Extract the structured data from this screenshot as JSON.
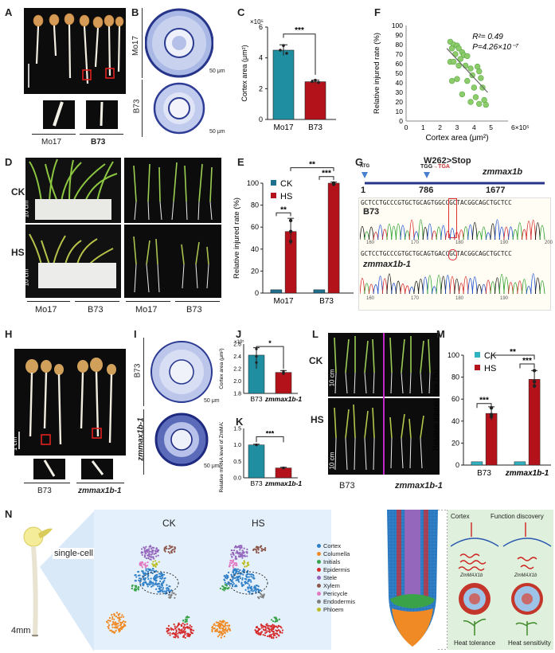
{
  "panels": {
    "A": "A",
    "B": "B",
    "C": "C",
    "D": "D",
    "E": "E",
    "F": "F",
    "G": "G",
    "H": "H",
    "I": "I",
    "J": "J",
    "K": "K",
    "L": "L",
    "M": "M",
    "N": "N"
  },
  "common": {
    "mo17": "Mo17",
    "b73": "B73",
    "zm": "zmmax1b-1",
    "ck": "CK",
    "hs": "HS",
    "scale_1cm": "1 cm",
    "scale_10cm": "10 cm",
    "scale_50um": "50 μm",
    "stars3": "***",
    "stars2": "**",
    "stars1": "*"
  },
  "panelC": {
    "chart_data": {
      "type": "bar",
      "categories": [
        "Mo17",
        "B73"
      ],
      "values": [
        4.5,
        2.45
      ],
      "errors": [
        0.35,
        0.1
      ],
      "colors": [
        "#1f8ea0",
        "#b3121b"
      ],
      "ylabel": "Cortex area (μm²)",
      "ylim": [
        0,
        6
      ],
      "yticks": [
        "0",
        "2",
        "4",
        "6"
      ],
      "exponent": "×10⁵",
      "significance": "***"
    }
  },
  "panelE": {
    "chart_data": {
      "type": "bar",
      "categories": [
        "Mo17",
        "B73"
      ],
      "series": [
        {
          "name": "CK",
          "values": [
            3,
            3
          ]
        },
        {
          "name": "HS",
          "values": [
            56,
            100
          ]
        }
      ],
      "ylabel": "Relative injured rate (%)",
      "ylim": [
        0,
        100
      ],
      "yticks": [
        "0",
        "20",
        "40",
        "60",
        "80",
        "100"
      ],
      "significance": [
        "**",
        "***",
        "**"
      ]
    }
  },
  "panelF": {
    "chart_data": {
      "type": "scatter",
      "xlabel": "Cortex area (μm²)",
      "ylabel": "Relative injured rate (%)",
      "xlim": [
        0,
        6
      ],
      "ylim": [
        0,
        100
      ],
      "xticks": [
        "0",
        "1",
        "2",
        "3",
        "4",
        "5"
      ],
      "exponent": "6×10⁵",
      "yticks": [
        "0",
        "10",
        "20",
        "30",
        "40",
        "50",
        "60",
        "70",
        "80",
        "90",
        "100"
      ],
      "r2": "R²= 0.49",
      "p": "P=4.26×10⁻⁷",
      "points": [
        [
          2.6,
          83
        ],
        [
          2.8,
          80
        ],
        [
          3.0,
          79
        ],
        [
          2.7,
          76
        ],
        [
          3.1,
          76
        ],
        [
          3.3,
          72
        ],
        [
          2.9,
          70
        ],
        [
          3.4,
          69
        ],
        [
          3.6,
          68
        ],
        [
          3.2,
          65
        ],
        [
          2.6,
          62
        ],
        [
          2.8,
          62
        ],
        [
          3.1,
          58
        ],
        [
          3.5,
          58
        ],
        [
          3.8,
          55
        ],
        [
          4.2,
          57
        ],
        [
          4.3,
          52
        ],
        [
          3.9,
          48
        ],
        [
          4.4,
          45
        ],
        [
          3.0,
          44
        ],
        [
          2.7,
          42
        ],
        [
          3.6,
          42
        ],
        [
          4.0,
          35
        ],
        [
          4.5,
          35
        ],
        [
          3.3,
          28
        ],
        [
          4.1,
          25
        ],
        [
          4.6,
          22
        ],
        [
          3.8,
          20
        ],
        [
          4.3,
          18
        ],
        [
          4.7,
          17
        ]
      ],
      "trend": [
        [
          2.4,
          76
        ],
        [
          4.8,
          30
        ]
      ]
    }
  },
  "panelG": {
    "title": "W262>Stop",
    "gene": "zmmax1b",
    "atg": "ATG",
    "tgg": "TGG",
    "arrow": "→",
    "tga": "TGA",
    "pos1": "1",
    "pos2": "786",
    "pos3": "1677",
    "seq1": "GCTCCTGCCCGTGCTGCAGTGGCCGCTACGGCAGCTGCTCC",
    "seq2": "GCTCCTGCCCGTGCTGCAGTGACCGCTACGGCAGCTGCTCC",
    "lab1": "B73",
    "lab2": "zmmax1b-1",
    "ticks1": [
      "160",
      "170",
      "180",
      "190",
      "200"
    ],
    "ticks2": [
      "160",
      "170",
      "180",
      "190"
    ]
  },
  "panelJ": {
    "chart_data": {
      "type": "bar",
      "categories": [
        "B73",
        "zmmax1b-1"
      ],
      "values": [
        2.42,
        2.14
      ],
      "errors": [
        0.12,
        0.03
      ],
      "ylabel": "Cortex area (μm²)",
      "ylim": [
        1.8,
        2.6
      ],
      "yticks": [
        "1.8",
        "2.0",
        "2.2",
        "2.4",
        "2.6"
      ],
      "exponent": "×10⁵",
      "significance": "*"
    }
  },
  "panelK": {
    "chart_data": {
      "type": "bar",
      "categories": [
        "B73",
        "zmmax1b-1"
      ],
      "values": [
        1.0,
        0.3
      ],
      "errors": [
        0.02,
        0.02
      ],
      "ylabel": "Relative mRNA level of ZmMAX1b",
      "ylim": [
        0,
        1.5
      ],
      "yticks": [
        "0.0",
        "0.5",
        "1.0",
        "1.5"
      ],
      "significance": "***"
    }
  },
  "panelM": {
    "chart_data": {
      "type": "bar",
      "categories": [
        "B73",
        "zmmax1b-1"
      ],
      "series": [
        {
          "name": "CK",
          "values": [
            3,
            3
          ]
        },
        {
          "name": "HS",
          "values": [
            47,
            78
          ]
        }
      ],
      "ylabel": "Relative injured rate (%)",
      "ylim": [
        0,
        100
      ],
      "yticks": [
        "0",
        "20",
        "40",
        "60",
        "80",
        "100"
      ],
      "significance": [
        "***",
        "***",
        "**"
      ]
    }
  },
  "panelN": {
    "single_cell": "single-cell",
    "length": "4mm",
    "ck": "CK",
    "hs": "HS",
    "legend": [
      {
        "name": "Cortex",
        "color": "#2f7fc7"
      },
      {
        "name": "Columella",
        "color": "#f08a24"
      },
      {
        "name": "Initials",
        "color": "#3aa34a"
      },
      {
        "name": "Epidermis",
        "color": "#d62a2a"
      },
      {
        "name": "Stele",
        "color": "#9467bd"
      },
      {
        "name": "Xylem",
        "color": "#8c564b"
      },
      {
        "name": "Pericycle",
        "color": "#e377c2"
      },
      {
        "name": "Endodermis",
        "color": "#7f7f7f"
      },
      {
        "name": "Phloem",
        "color": "#bcbd22"
      }
    ],
    "cortex": "Cortex",
    "discovery": "Function discovery",
    "gene1": "ZmMAX1b",
    "gene2": "ZmMAX1b",
    "tol": "Heat tolerance",
    "sens": "Heat sensitivity"
  }
}
